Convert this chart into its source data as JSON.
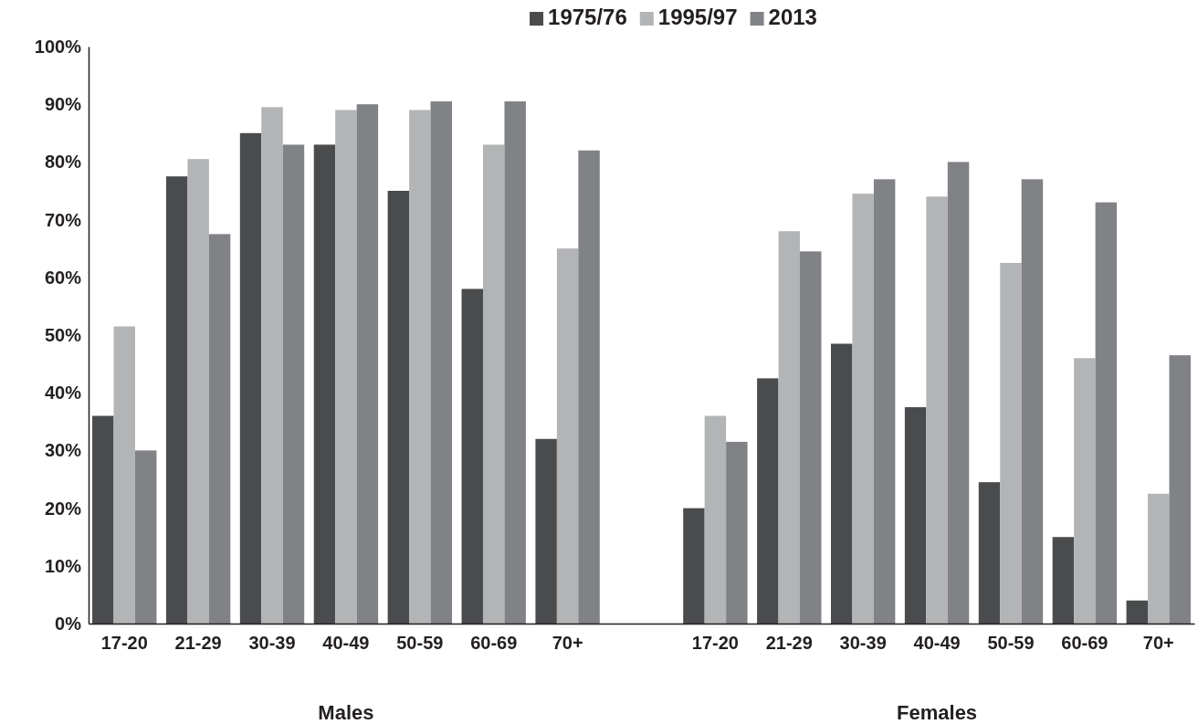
{
  "chart_data": {
    "type": "bar",
    "categories": [
      "17-20",
      "21-29",
      "30-39",
      "40-49",
      "50-59",
      "60-69",
      "70+",
      null,
      "17-20",
      "21-29",
      "30-39",
      "40-49",
      "50-59",
      "60-69",
      "70+"
    ],
    "series": [
      {
        "name": "1975/76",
        "color": "#4a4b4d",
        "values": [
          36,
          77.5,
          85,
          83,
          75,
          58,
          32,
          null,
          20,
          42.5,
          48.5,
          37.5,
          24.5,
          15,
          4
        ]
      },
      {
        "name": "1995/97",
        "color": "#b3b4b6",
        "values": [
          51.5,
          80.5,
          89.5,
          89,
          89,
          83,
          65,
          null,
          36,
          68,
          74.5,
          74,
          62.5,
          46,
          22.5
        ]
      },
      {
        "name": "2013",
        "color": "#818286",
        "values": [
          30,
          67.5,
          83,
          90,
          90.5,
          90.5,
          82,
          null,
          31.5,
          64.5,
          77,
          80,
          77,
          73,
          46.5
        ]
      }
    ],
    "ylim": [
      0,
      100
    ],
    "yticks": [
      {
        "value": 0,
        "label": "0%"
      },
      {
        "value": 10,
        "label": "10%"
      },
      {
        "value": 20,
        "label": "20%"
      },
      {
        "value": 30,
        "label": "30%"
      },
      {
        "value": 40,
        "label": "40%"
      },
      {
        "value": 50,
        "label": "50%"
      },
      {
        "value": 60,
        "label": "60%"
      },
      {
        "value": 70,
        "label": "70%"
      },
      {
        "value": 80,
        "label": "80%"
      },
      {
        "value": 90,
        "label": "90%"
      },
      {
        "value": 100,
        "label": "100%"
      }
    ],
    "legend": "top",
    "annotations": [
      "Males",
      "Females"
    ]
  }
}
